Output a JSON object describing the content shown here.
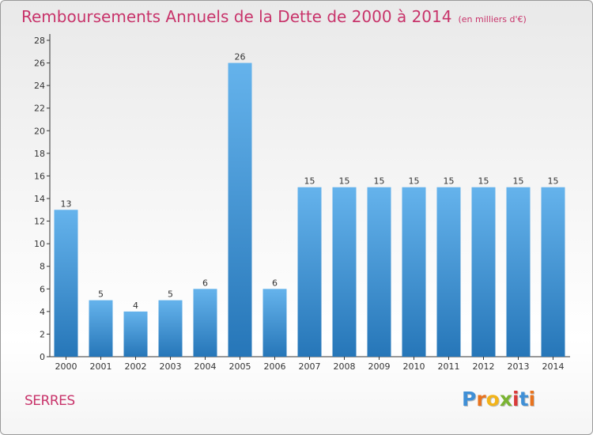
{
  "header": {
    "title": "Remboursements Annuels de la Dette de 2000 à 2014",
    "subtitle": "(en milliers d'€)"
  },
  "footer": {
    "commune": "SERRES",
    "brand": "Proxiti"
  },
  "colors": {
    "title": "#c8336a",
    "bar_top": "#65b3ec",
    "bar_bottom": "#2676b8",
    "axis": "#333333"
  },
  "chart_data": {
    "type": "bar",
    "title": "Remboursements Annuels de la Dette de 2000 à 2014",
    "subtitle": "(en milliers d'€)",
    "categories": [
      "2000",
      "2001",
      "2002",
      "2003",
      "2004",
      "2005",
      "2006",
      "2007",
      "2008",
      "2009",
      "2010",
      "2011",
      "2012",
      "2013",
      "2014"
    ],
    "values": [
      13,
      5,
      4,
      5,
      6,
      26,
      6,
      15,
      15,
      15,
      15,
      15,
      15,
      15,
      15
    ],
    "ylim": [
      0,
      28
    ],
    "yticks": [
      0,
      2,
      4,
      6,
      8,
      10,
      12,
      14,
      16,
      18,
      20,
      22,
      24,
      26,
      28
    ],
    "grid": false,
    "legend": "none"
  }
}
